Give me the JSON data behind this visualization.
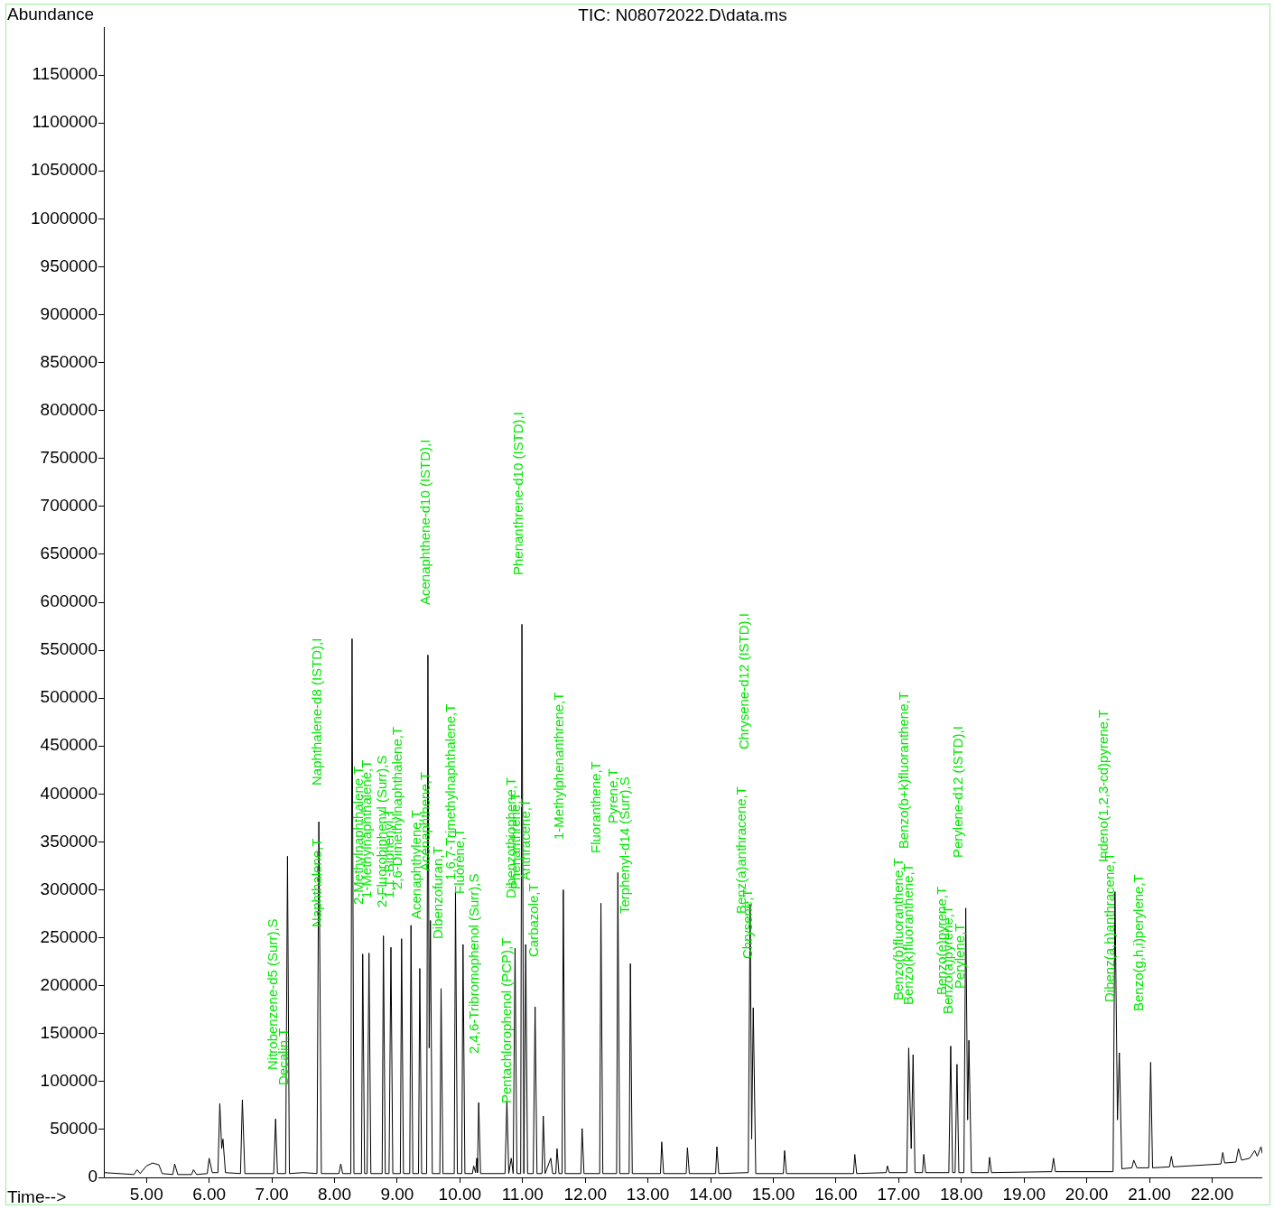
{
  "chart_data": {
    "type": "line",
    "title": "TIC: N08072022.D\\data.ms",
    "ylabel": "Abundance",
    "xlabel": "Time-->",
    "xlim": [
      4.32,
      22.8
    ],
    "ylim": [
      0,
      1200000
    ],
    "xticks": [
      {
        "value": 5,
        "label": "5.00"
      },
      {
        "value": 6,
        "label": "6.00"
      },
      {
        "value": 7,
        "label": "7.00"
      },
      {
        "value": 8,
        "label": "8.00"
      },
      {
        "value": 9,
        "label": "9.00"
      },
      {
        "value": 10,
        "label": "10.00"
      },
      {
        "value": 11,
        "label": "11.00"
      },
      {
        "value": 12,
        "label": "12.00"
      },
      {
        "value": 13,
        "label": "13.00"
      },
      {
        "value": 14,
        "label": "14.00"
      },
      {
        "value": 15,
        "label": "15.00"
      },
      {
        "value": 16,
        "label": "16.00"
      },
      {
        "value": 17,
        "label": "17.00"
      },
      {
        "value": 18,
        "label": "18.00"
      },
      {
        "value": 19,
        "label": "19.00"
      },
      {
        "value": 20,
        "label": "20.00"
      },
      {
        "value": 21,
        "label": "21.00"
      },
      {
        "value": 22,
        "label": "22.00"
      }
    ],
    "yticks": [
      0,
      50000,
      100000,
      150000,
      200000,
      250000,
      300000,
      350000,
      400000,
      450000,
      500000,
      550000,
      600000,
      650000,
      700000,
      750000,
      800000,
      850000,
      900000,
      950000,
      1000000,
      1050000,
      1100000,
      1150000
    ],
    "grid": false,
    "legend": false,
    "marker": "none",
    "line_style": "solid",
    "series": [
      {
        "color": "#000000",
        "x": [
          4.32,
          4.8,
          4.85,
          4.9,
          5.0,
          5.1,
          5.2,
          5.25,
          5.42,
          5.45,
          5.5,
          5.72,
          5.75,
          5.8,
          5.97,
          6.0,
          6.05,
          6.14,
          6.17,
          6.2,
          6.22,
          6.26,
          6.5,
          6.53,
          6.57,
          7.03,
          7.06,
          7.09,
          7.22,
          7.25,
          7.28,
          7.5,
          7.72,
          7.75,
          7.79,
          8.07,
          8.1,
          8.13,
          8.26,
          8.28,
          8.31,
          8.43,
          8.45,
          8.48,
          8.52,
          8.55,
          8.58,
          8.76,
          8.78,
          8.81,
          8.87,
          8.9,
          8.93,
          9.05,
          9.07,
          9.1,
          9.2,
          9.22,
          9.25,
          9.34,
          9.36,
          9.39,
          9.47,
          9.49,
          9.51,
          9.53,
          9.56,
          9.68,
          9.7,
          9.73,
          9.91,
          9.93,
          9.96,
          10.03,
          10.05,
          10.08,
          10.2,
          10.22,
          10.25,
          10.27,
          10.28,
          10.3,
          10.33,
          10.72,
          10.75,
          10.78,
          10.82,
          10.85,
          10.88,
          10.91,
          10.97,
          10.99,
          11.02,
          11.05,
          11.08,
          11.17,
          11.2,
          11.23,
          11.31,
          11.33,
          11.36,
          11.45,
          11.48,
          11.53,
          11.55,
          11.58,
          11.63,
          11.65,
          11.68,
          11.93,
          11.95,
          11.98,
          12.23,
          12.25,
          12.28,
          12.5,
          12.52,
          12.55,
          12.7,
          12.72,
          12.75,
          13.2,
          13.22,
          13.25,
          13.61,
          13.63,
          13.66,
          14.08,
          14.1,
          14.13,
          14.6,
          14.63,
          14.655,
          14.68,
          14.72,
          15.16,
          15.18,
          15.21,
          16.28,
          16.3,
          16.33,
          16.8,
          16.82,
          16.85,
          17.13,
          17.16,
          17.2,
          17.23,
          17.26,
          17.38,
          17.4,
          17.43,
          17.8,
          17.83,
          17.86,
          17.9,
          17.93,
          17.96,
          18.04,
          18.07,
          18.1,
          18.12,
          18.16,
          18.43,
          18.45,
          18.48,
          19.44,
          19.47,
          19.5,
          20.42,
          20.45,
          20.49,
          20.52,
          20.56,
          20.72,
          20.75,
          20.8,
          20.99,
          21.02,
          21.05,
          21.32,
          21.35,
          21.38,
          22.14,
          22.17,
          22.2,
          22.38,
          22.42,
          22.47,
          22.6,
          22.68,
          22.72,
          22.78,
          22.8
        ],
        "values": [
          5000,
          3000,
          8000,
          4000,
          12000,
          15000,
          13000,
          4000,
          3000,
          14000,
          3000,
          3000,
          8000,
          3000,
          4000,
          20000,
          5000,
          5000,
          77000,
          30000,
          40000,
          5000,
          4000,
          81000,
          4000,
          4000,
          61000,
          4000,
          4000,
          335000,
          4000,
          5000,
          4000,
          371000,
          4000,
          4000,
          14000,
          4000,
          4000,
          562000,
          4000,
          4000,
          233000,
          4000,
          4000,
          234000,
          4000,
          4000,
          252000,
          4000,
          4000,
          240000,
          4000,
          4000,
          249000,
          4000,
          4000,
          263000,
          4000,
          4000,
          218000,
          4000,
          4000,
          545000,
          135000,
          268000,
          4000,
          4000,
          197000,
          4000,
          4000,
          299000,
          4000,
          4000,
          243000,
          4000,
          4000,
          12000,
          5000,
          20000,
          5000,
          78000,
          4000,
          4000,
          80000,
          4000,
          20000,
          4000,
          239000,
          4000,
          4000,
          577000,
          4000,
          243000,
          4000,
          4000,
          178000,
          4000,
          4000,
          64000,
          4000,
          20000,
          4000,
          4000,
          30000,
          4000,
          4000,
          300000,
          4000,
          4000,
          51000,
          4000,
          4000,
          286000,
          4000,
          4000,
          318000,
          4000,
          4000,
          223000,
          4000,
          4000,
          37000,
          4000,
          4000,
          31000,
          4000,
          4000,
          32000,
          4000,
          5000,
          285000,
          40000,
          177000,
          4000,
          4000,
          28000,
          4000,
          4000,
          24000,
          4000,
          5000,
          12000,
          5000,
          5000,
          135000,
          30000,
          128000,
          5000,
          5000,
          24000,
          5000,
          5000,
          137000,
          5000,
          5000,
          118000,
          5000,
          5000,
          281000,
          60000,
          143000,
          5000,
          5000,
          21000,
          5000,
          6000,
          20000,
          6000,
          6000,
          298000,
          60000,
          130000,
          9000,
          10000,
          18000,
          10000,
          10000,
          120000,
          10000,
          11000,
          22000,
          11000,
          14000,
          26000,
          15000,
          16000,
          30000,
          18000,
          20000,
          28000,
          22000,
          32000,
          25000
        ]
      }
    ],
    "annotations": [
      "Nitrobenzene-d5 (Surr),S",
      "Decalin,T",
      "Naphthalene,T",
      "Naphthalene-d8 (ISTD),I",
      "2-Methylnaphthalene,T",
      "1-Methylnaphthalene,T",
      "2-Fluorobiphenyl (Surr),S",
      "1,1'-Biphenyl,T",
      "2,6-Dimethylnaphthalene,T",
      "Acenaphthylene,T",
      "Acenaphthene,T",
      "Acenaphthene-d10 (ISTD),I",
      "Dibenzofuran,T",
      "1,6,7-Trimethylnaphthalene,T",
      "Fluorene,T",
      "2,4,6-Tribromophenol (Surr),S",
      "Pentachlorophenol (PCP),T",
      "Dibenzothiophene,T",
      "Phenanthrene-d10 (ISTD),I",
      "Phenanthrene,T",
      "Anthracene,T",
      "Carbazole,T",
      "1-Methylphenanthrene,T",
      "Fluoranthene,T",
      "Pyrene,T",
      "Terphenyl-d14 (Surr),S",
      "Benz(a)anthracene,T",
      "Chrysene,T",
      "Chrysene-d12 (ISTD),I",
      "Benzo(b)fluoranthene,T",
      "Benzo(k)fluoranthene,T",
      "Benzo(b+k)fluoranthene,T",
      "Benzo(e)pyrene,T",
      "Benzo(a)pyrene,T",
      "Perylene,T",
      "Perylene-d12 (ISTD),I",
      "Indeno(1,2,3-cd)pyrene,T",
      "Dibenz(a,h)anthracene,T",
      "Benzo(g,h,i)perylene,T"
    ]
  }
}
